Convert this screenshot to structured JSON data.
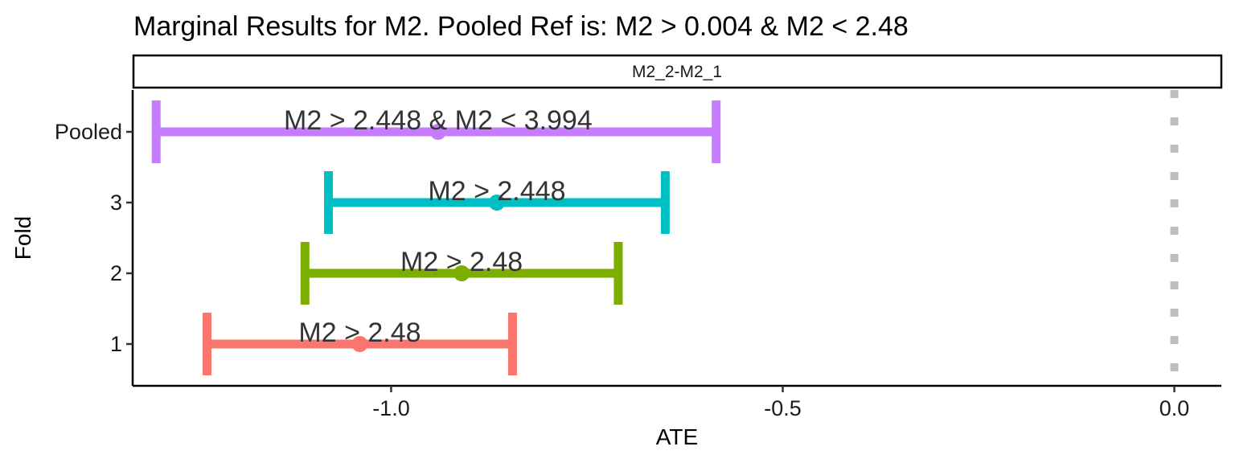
{
  "chart_data": {
    "type": "forest",
    "title": "Marginal Results for M2. Pooled Ref is: M2  >  0.004 & M2 < 2.48",
    "facet_label": "M2_2-M2_1",
    "xlabel": "ATE",
    "ylabel": "Fold",
    "xlim": [
      -1.33,
      0.06
    ],
    "x_ticks": [
      -1.0,
      -0.5,
      0.0
    ],
    "x_tick_labels": [
      "-1.0",
      "-0.5",
      "0.0"
    ],
    "categories": [
      "1",
      "2",
      "3",
      "Pooled"
    ],
    "points": [
      {
        "fold": "1",
        "estimate": -1.04,
        "lower": -1.235,
        "upper": -0.845,
        "label": "M2 > 2.48",
        "color": "#F8766D"
      },
      {
        "fold": "2",
        "estimate": -0.91,
        "lower": -1.11,
        "upper": -0.71,
        "label": "M2 > 2.48",
        "color": "#7CAE00"
      },
      {
        "fold": "3",
        "estimate": -0.865,
        "lower": -1.08,
        "upper": -0.65,
        "label": "M2 > 2.448",
        "color": "#00BFC4"
      },
      {
        "fold": "Pooled",
        "estimate": -0.94,
        "lower": -1.3,
        "upper": -0.585,
        "label": "M2  >  2.448 & M2 < 3.994",
        "color": "#C77CFF"
      }
    ],
    "reference_line": {
      "x": 0.0,
      "style": "dotted",
      "color": "#BEBEBE"
    },
    "grid": false,
    "legend": "none"
  }
}
